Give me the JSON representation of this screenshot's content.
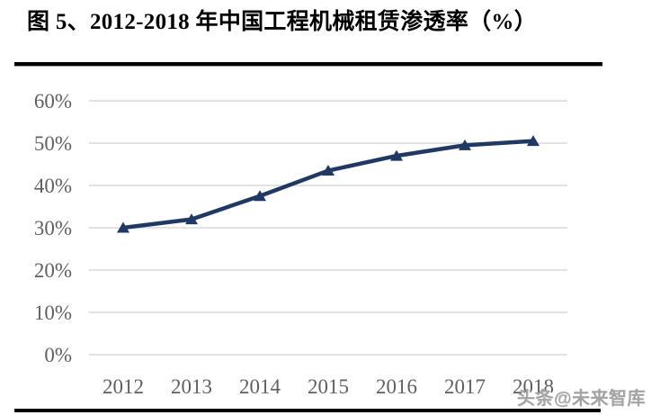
{
  "page": {
    "title": "图 5、2012-2018 年中国工程机械租赁渗透率（%）",
    "watermark": "头条@未来智库"
  },
  "colors": {
    "line": "#1f3864",
    "grid": "#d9d9d9",
    "tick_label": "#606060",
    "title": "#000000",
    "rule": "#000000"
  },
  "chart_data": {
    "type": "line",
    "title": "2012-2018 年中国工程机械租赁渗透率（%）",
    "categories": [
      "2012",
      "2013",
      "2014",
      "2015",
      "2016",
      "2017",
      "2018"
    ],
    "series": [
      {
        "name": "中国工程机械租赁渗透率",
        "values": [
          30,
          32,
          37.5,
          43.5,
          47,
          49.5,
          50.5
        ]
      }
    ],
    "ylim": [
      0,
      60
    ],
    "ytick_step": 10,
    "yticks": [
      "0%",
      "10%",
      "20%",
      "30%",
      "40%",
      "50%",
      "60%"
    ],
    "xlabel": "",
    "ylabel": "",
    "grid": true,
    "legend": false,
    "marker": "triangle-up"
  }
}
